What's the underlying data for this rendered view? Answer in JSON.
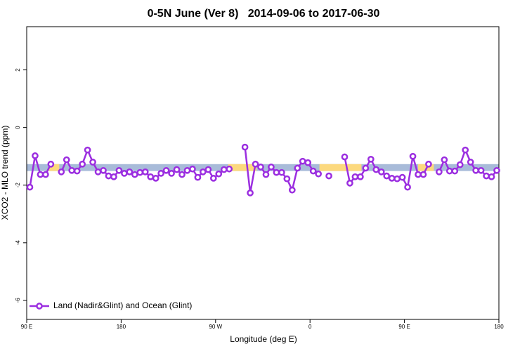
{
  "chart_data": {
    "type": "line",
    "title": "0-5N June (Ver 8)   2014-09-06 to 2017-06-30",
    "x_label": "Longitude (deg E)",
    "y_label": "XCO2 - MLO trend (ppm)",
    "xlim": [
      90,
      540
    ],
    "ylim": [
      -6.66,
      3.5
    ],
    "xticks": [
      {
        "value": 90,
        "label": "90 E"
      },
      {
        "value": 180,
        "label": "180"
      },
      {
        "value": 270,
        "label": "90 W"
      },
      {
        "value": 360,
        "label": "0"
      },
      {
        "value": 450,
        "label": "90 E"
      },
      {
        "value": 540,
        "label": "180"
      }
    ],
    "yticks": [
      -6,
      -4,
      -2,
      0,
      2
    ],
    "bands": [
      {
        "color": "#a8bbd9",
        "xlim": [
          90,
          540
        ],
        "ylim": [
          -1.51,
          -1.27
        ]
      },
      {
        "color": "#fcd97e",
        "xlim": [
          111,
          121
        ],
        "ylim": [
          -1.51,
          -1.27
        ]
      },
      {
        "color": "#fcd97e",
        "xlim": [
          282,
          309
        ],
        "ylim": [
          -1.51,
          -1.27
        ]
      },
      {
        "color": "#fcd97e",
        "xlim": [
          369,
          409
        ],
        "ylim": [
          -1.51,
          -1.27
        ]
      },
      {
        "color": "#fcd97e",
        "xlim": [
          463,
          478
        ],
        "ylim": [
          -1.51,
          -1.27
        ]
      }
    ],
    "x": [
      93,
      98,
      103,
      108,
      113,
      118,
      123,
      128,
      133,
      138,
      143,
      148,
      153,
      158,
      163,
      168,
      173,
      178,
      183,
      188,
      193,
      198,
      203,
      208,
      213,
      218,
      223,
      228,
      233,
      238,
      243,
      248,
      253,
      258,
      263,
      268,
      273,
      278,
      283,
      288,
      298,
      303,
      308,
      313,
      318,
      323,
      328,
      333,
      338,
      343,
      348,
      353,
      358,
      363,
      368,
      373,
      378,
      383,
      393,
      398,
      403,
      408,
      413,
      418,
      423,
      428,
      433,
      438,
      443,
      448,
      453,
      458,
      463,
      468,
      473,
      478,
      483,
      488,
      493,
      498,
      503,
      508,
      513,
      518,
      523,
      528,
      533,
      538
    ],
    "series": [
      {
        "name": "Land (Nadir&Glint) and Ocean (Glint)",
        "color": "#9b2ee0",
        "values": [
          -2.07,
          -0.98,
          -1.63,
          -1.63,
          -1.27,
          null,
          -1.54,
          -1.12,
          -1.49,
          -1.51,
          -1.27,
          -0.78,
          -1.2,
          -1.54,
          -1.49,
          -1.68,
          -1.71,
          -1.49,
          -1.59,
          -1.54,
          -1.63,
          -1.56,
          -1.54,
          -1.71,
          -1.76,
          -1.59,
          -1.49,
          -1.59,
          -1.46,
          -1.63,
          -1.49,
          -1.44,
          -1.73,
          -1.54,
          -1.46,
          -1.76,
          -1.61,
          -1.46,
          -1.44,
          null,
          -0.68,
          -2.27,
          -1.27,
          -1.37,
          -1.63,
          -1.37,
          -1.56,
          -1.56,
          -1.78,
          -2.17,
          -1.41,
          -1.17,
          -1.22,
          -1.51,
          -1.61,
          null,
          -1.68,
          null,
          -1.02,
          -1.93,
          -1.71,
          -1.71,
          -1.41,
          -1.1,
          -1.46,
          -1.54,
          -1.68,
          -1.76,
          -1.78,
          -1.73,
          -2.07,
          -1.0,
          -1.63,
          -1.63,
          -1.27,
          null,
          -1.54,
          -1.12,
          -1.51,
          -1.51,
          -1.29,
          -0.78,
          -1.2,
          -1.49,
          -1.49,
          -1.68,
          -1.71,
          -1.49
        ]
      }
    ]
  }
}
